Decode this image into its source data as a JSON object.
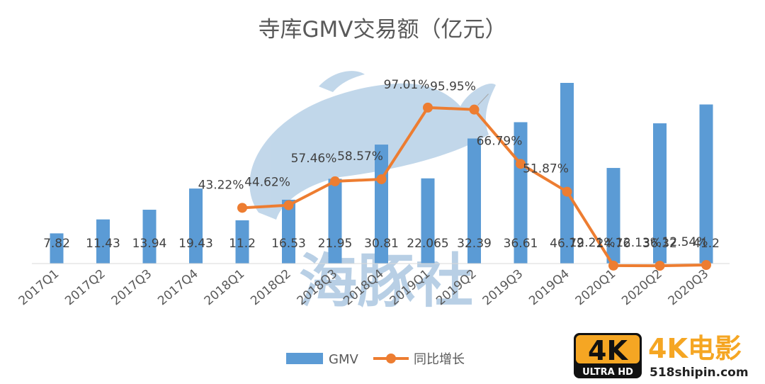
{
  "chart_data": {
    "type": "bar",
    "title": "寺库GMV交易额（亿元）",
    "categories": [
      "2017Q1",
      "2017Q2",
      "2017Q3",
      "2017Q4",
      "2018Q1",
      "2018Q2",
      "2018Q3",
      "2018Q4",
      "2019Q1",
      "2019Q2",
      "2019Q3",
      "2019Q4",
      "2020Q1",
      "2020Q2",
      "2020Q3"
    ],
    "series": [
      {
        "name": "GMV",
        "type": "bar",
        "color": "#5B9BD5",
        "values": [
          7.82,
          11.43,
          13.94,
          19.43,
          11.2,
          16.53,
          21.95,
          30.81,
          22.065,
          32.39,
          36.61,
          46.79,
          24.76,
          36.32,
          41.2
        ],
        "labels": [
          "7.82",
          "11.43",
          "13.94",
          "19.43",
          "11.2",
          "16.53",
          "21.95",
          "30.81",
          "22.065",
          "32.39",
          "36.61",
          "46.79",
          "24.76",
          "36.32",
          "41.2"
        ]
      },
      {
        "name": "同比增长",
        "type": "line",
        "color": "#ED7D31",
        "values": [
          null,
          null,
          null,
          null,
          43.22,
          44.62,
          57.46,
          58.57,
          97.01,
          95.95,
          66.79,
          51.87,
          12.21,
          12.13,
          12.54
        ],
        "labels": [
          null,
          null,
          null,
          null,
          "43.22%",
          "44.62%",
          "57.46%",
          "58.57%",
          "97.01%",
          "95.95%",
          "66.79%",
          "51.87%",
          "12.21%",
          "12.13%",
          "12.54%"
        ]
      }
    ],
    "legend_position": "bottom",
    "grid": false
  },
  "watermark": {
    "text": "海豚社"
  },
  "badge": {
    "big": "4K",
    "small": "ULTRA HD",
    "name": "4K电影",
    "site": "518shipin.com",
    "accent": "#F5A623"
  }
}
